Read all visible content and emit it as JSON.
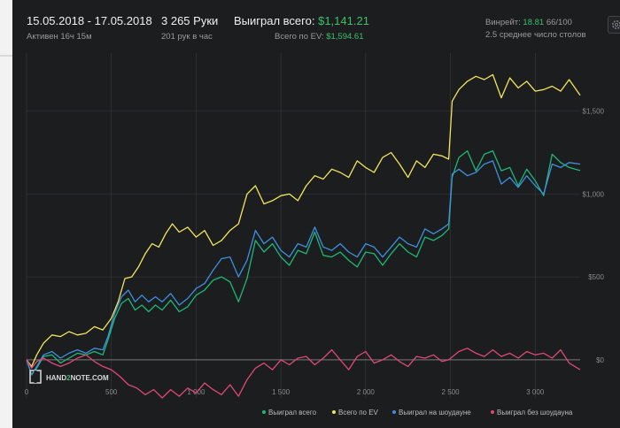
{
  "header": {
    "date_range": "15.05.2018 - 17.05.2018",
    "active": "Активен 16ч 15м",
    "hands": "3 265 Руки",
    "hands_per_hour": "201 рук в час",
    "won_label": "Выиграл всего:",
    "won_value": "$1,141.21",
    "ev_label": "Всего по EV:",
    "ev_value": "$1,594.61",
    "winrate_label": "Винрейт:",
    "winrate_value": "18.81",
    "winrate_extra": "66/100",
    "tables": "2.5 среднее число столов"
  },
  "logo": {
    "text_left": "HAND",
    "text_mid": "2",
    "text_right": "NOTE.COM"
  },
  "colors": {
    "background": "#1c1d1f",
    "grid": "#3a3b3e",
    "zero_line": "#7a7a7a",
    "won": "#1eb877",
    "ev": "#f2e55b",
    "showdown": "#3f8fde",
    "non_showdown": "#e04874",
    "accent_green": "#3cc06a"
  },
  "legend": [
    {
      "label": "Выиграл всего",
      "color": "#1eb877"
    },
    {
      "label": "Всего по EV",
      "color": "#f2e55b"
    },
    {
      "label": "Выиграл на шоудауне",
      "color": "#3f8fde"
    },
    {
      "label": "Выиграл без шоудауна",
      "color": "#e04874"
    }
  ],
  "chart_data": {
    "type": "line",
    "xlim": [
      0,
      3265
    ],
    "ylim": [
      -230,
      1850
    ],
    "x_ticks": [
      {
        "value": 0,
        "label": "0"
      },
      {
        "value": 500,
        "label": "500"
      },
      {
        "value": 1000,
        "label": "1 000"
      },
      {
        "value": 1500,
        "label": "1 500"
      },
      {
        "value": 2000,
        "label": "2 000"
      },
      {
        "value": 2500,
        "label": "2 500"
      },
      {
        "value": 3000,
        "label": "3 000"
      }
    ],
    "y_ticks": [
      {
        "value": 0,
        "label": "$0"
      },
      {
        "value": 500,
        "label": "$500"
      },
      {
        "value": 1000,
        "label": "$1,000"
      },
      {
        "value": 1500,
        "label": "$1,500"
      }
    ],
    "grid": true,
    "legend_position": "bottom-right",
    "series": [
      {
        "name": "Выиграл всего",
        "color": "#1eb877",
        "points": [
          [
            0,
            0
          ],
          [
            30,
            -90
          ],
          [
            60,
            -50
          ],
          [
            100,
            20
          ],
          [
            150,
            30
          ],
          [
            200,
            -20
          ],
          [
            250,
            10
          ],
          [
            300,
            40
          ],
          [
            350,
            30
          ],
          [
            400,
            50
          ],
          [
            450,
            30
          ],
          [
            480,
            120
          ],
          [
            520,
            250
          ],
          [
            560,
            340
          ],
          [
            600,
            370
          ],
          [
            640,
            300
          ],
          [
            680,
            330
          ],
          [
            720,
            290
          ],
          [
            760,
            330
          ],
          [
            800,
            300
          ],
          [
            850,
            360
          ],
          [
            900,
            290
          ],
          [
            950,
            320
          ],
          [
            1000,
            390
          ],
          [
            1050,
            420
          ],
          [
            1100,
            480
          ],
          [
            1150,
            500
          ],
          [
            1200,
            470
          ],
          [
            1250,
            350
          ],
          [
            1300,
            490
          ],
          [
            1350,
            720
          ],
          [
            1400,
            650
          ],
          [
            1450,
            700
          ],
          [
            1500,
            620
          ],
          [
            1550,
            570
          ],
          [
            1600,
            660
          ],
          [
            1650,
            640
          ],
          [
            1700,
            770
          ],
          [
            1750,
            630
          ],
          [
            1800,
            620
          ],
          [
            1850,
            650
          ],
          [
            1900,
            600
          ],
          [
            1950,
            560
          ],
          [
            2000,
            650
          ],
          [
            2050,
            640
          ],
          [
            2100,
            570
          ],
          [
            2150,
            640
          ],
          [
            2200,
            700
          ],
          [
            2250,
            650
          ],
          [
            2300,
            620
          ],
          [
            2350,
            740
          ],
          [
            2400,
            720
          ],
          [
            2450,
            750
          ],
          [
            2490,
            790
          ],
          [
            2510,
            1100
          ],
          [
            2550,
            1220
          ],
          [
            2600,
            1260
          ],
          [
            2650,
            1140
          ],
          [
            2700,
            1240
          ],
          [
            2750,
            1260
          ],
          [
            2800,
            1140
          ],
          [
            2850,
            1160
          ],
          [
            2900,
            1050
          ],
          [
            2950,
            1150
          ],
          [
            3000,
            1080
          ],
          [
            3050,
            990
          ],
          [
            3100,
            1240
          ],
          [
            3150,
            1190
          ],
          [
            3200,
            1160
          ],
          [
            3265,
            1141
          ]
        ]
      },
      {
        "name": "Всего по EV",
        "color": "#f2e55b",
        "points": [
          [
            0,
            0
          ],
          [
            30,
            -40
          ],
          [
            60,
            30
          ],
          [
            100,
            100
          ],
          [
            150,
            150
          ],
          [
            200,
            140
          ],
          [
            250,
            170
          ],
          [
            300,
            150
          ],
          [
            350,
            160
          ],
          [
            400,
            200
          ],
          [
            450,
            180
          ],
          [
            500,
            250
          ],
          [
            540,
            350
          ],
          [
            580,
            490
          ],
          [
            620,
            500
          ],
          [
            660,
            560
          ],
          [
            700,
            640
          ],
          [
            740,
            700
          ],
          [
            780,
            680
          ],
          [
            820,
            760
          ],
          [
            860,
            820
          ],
          [
            900,
            770
          ],
          [
            950,
            800
          ],
          [
            1000,
            740
          ],
          [
            1050,
            780
          ],
          [
            1100,
            690
          ],
          [
            1150,
            720
          ],
          [
            1200,
            780
          ],
          [
            1250,
            820
          ],
          [
            1300,
            1000
          ],
          [
            1350,
            1050
          ],
          [
            1400,
            940
          ],
          [
            1450,
            960
          ],
          [
            1500,
            990
          ],
          [
            1550,
            1000
          ],
          [
            1600,
            960
          ],
          [
            1650,
            1050
          ],
          [
            1700,
            1110
          ],
          [
            1750,
            1090
          ],
          [
            1800,
            1150
          ],
          [
            1850,
            1130
          ],
          [
            1900,
            1100
          ],
          [
            1950,
            1200
          ],
          [
            2000,
            1160
          ],
          [
            2050,
            1130
          ],
          [
            2100,
            1220
          ],
          [
            2150,
            1250
          ],
          [
            2200,
            1180
          ],
          [
            2250,
            1100
          ],
          [
            2300,
            1200
          ],
          [
            2350,
            1160
          ],
          [
            2400,
            1240
          ],
          [
            2450,
            1230
          ],
          [
            2490,
            1210
          ],
          [
            2510,
            1560
          ],
          [
            2550,
            1630
          ],
          [
            2600,
            1680
          ],
          [
            2650,
            1710
          ],
          [
            2700,
            1690
          ],
          [
            2750,
            1720
          ],
          [
            2800,
            1580
          ],
          [
            2850,
            1700
          ],
          [
            2900,
            1640
          ],
          [
            2950,
            1680
          ],
          [
            3000,
            1620
          ],
          [
            3050,
            1630
          ],
          [
            3100,
            1650
          ],
          [
            3150,
            1620
          ],
          [
            3200,
            1690
          ],
          [
            3265,
            1595
          ]
        ]
      },
      {
        "name": "Выиграл на шоудауне",
        "color": "#3f8fde",
        "points": [
          [
            0,
            0
          ],
          [
            30,
            -90
          ],
          [
            60,
            -40
          ],
          [
            100,
            30
          ],
          [
            150,
            50
          ],
          [
            200,
            10
          ],
          [
            250,
            40
          ],
          [
            300,
            60
          ],
          [
            350,
            40
          ],
          [
            400,
            70
          ],
          [
            450,
            60
          ],
          [
            480,
            140
          ],
          [
            520,
            280
          ],
          [
            560,
            380
          ],
          [
            600,
            420
          ],
          [
            640,
            350
          ],
          [
            680,
            390
          ],
          [
            720,
            350
          ],
          [
            760,
            380
          ],
          [
            800,
            350
          ],
          [
            850,
            400
          ],
          [
            900,
            330
          ],
          [
            950,
            370
          ],
          [
            1000,
            430
          ],
          [
            1050,
            460
          ],
          [
            1100,
            540
          ],
          [
            1150,
            610
          ],
          [
            1200,
            620
          ],
          [
            1250,
            500
          ],
          [
            1300,
            600
          ],
          [
            1350,
            780
          ],
          [
            1400,
            700
          ],
          [
            1450,
            740
          ],
          [
            1500,
            660
          ],
          [
            1550,
            620
          ],
          [
            1600,
            700
          ],
          [
            1650,
            680
          ],
          [
            1700,
            800
          ],
          [
            1750,
            680
          ],
          [
            1800,
            660
          ],
          [
            1850,
            700
          ],
          [
            1900,
            650
          ],
          [
            1950,
            620
          ],
          [
            2000,
            700
          ],
          [
            2050,
            680
          ],
          [
            2100,
            620
          ],
          [
            2150,
            680
          ],
          [
            2200,
            740
          ],
          [
            2250,
            700
          ],
          [
            2300,
            680
          ],
          [
            2350,
            790
          ],
          [
            2400,
            760
          ],
          [
            2450,
            790
          ],
          [
            2490,
            820
          ],
          [
            2510,
            1120
          ],
          [
            2550,
            1150
          ],
          [
            2600,
            1110
          ],
          [
            2650,
            1130
          ],
          [
            2700,
            1180
          ],
          [
            2750,
            1200
          ],
          [
            2800,
            1060
          ],
          [
            2850,
            1100
          ],
          [
            2900,
            1040
          ],
          [
            2950,
            1110
          ],
          [
            3000,
            1050
          ],
          [
            3050,
            1000
          ],
          [
            3100,
            1180
          ],
          [
            3150,
            1160
          ],
          [
            3200,
            1190
          ],
          [
            3265,
            1180
          ]
        ]
      },
      {
        "name": "Выиграл без шоудауна",
        "color": "#e04874",
        "points": [
          [
            0,
            0
          ],
          [
            30,
            -50
          ],
          [
            60,
            -10
          ],
          [
            100,
            10
          ],
          [
            150,
            -20
          ],
          [
            200,
            -40
          ],
          [
            250,
            -20
          ],
          [
            300,
            10
          ],
          [
            350,
            30
          ],
          [
            400,
            -10
          ],
          [
            450,
            -40
          ],
          [
            500,
            -60
          ],
          [
            550,
            -100
          ],
          [
            600,
            -150
          ],
          [
            650,
            -170
          ],
          [
            700,
            -210
          ],
          [
            750,
            -180
          ],
          [
            800,
            -230
          ],
          [
            850,
            -180
          ],
          [
            900,
            -220
          ],
          [
            950,
            -170
          ],
          [
            1000,
            -200
          ],
          [
            1050,
            -140
          ],
          [
            1100,
            -180
          ],
          [
            1150,
            -210
          ],
          [
            1200,
            -150
          ],
          [
            1250,
            -220
          ],
          [
            1300,
            -120
          ],
          [
            1350,
            -50
          ],
          [
            1400,
            -20
          ],
          [
            1450,
            -60
          ],
          [
            1500,
            0
          ],
          [
            1550,
            -30
          ],
          [
            1600,
            10
          ],
          [
            1650,
            20
          ],
          [
            1700,
            -30
          ],
          [
            1750,
            10
          ],
          [
            1800,
            60
          ],
          [
            1850,
            0
          ],
          [
            1900,
            -60
          ],
          [
            1950,
            20
          ],
          [
            2000,
            50
          ],
          [
            2050,
            -20
          ],
          [
            2100,
            0
          ],
          [
            2150,
            30
          ],
          [
            2200,
            -10
          ],
          [
            2250,
            -40
          ],
          [
            2300,
            20
          ],
          [
            2350,
            10
          ],
          [
            2400,
            30
          ],
          [
            2450,
            -10
          ],
          [
            2490,
            0
          ],
          [
            2550,
            50
          ],
          [
            2600,
            70
          ],
          [
            2650,
            40
          ],
          [
            2700,
            20
          ],
          [
            2750,
            60
          ],
          [
            2800,
            20
          ],
          [
            2850,
            40
          ],
          [
            2900,
            10
          ],
          [
            2950,
            50
          ],
          [
            3000,
            30
          ],
          [
            3050,
            40
          ],
          [
            3100,
            10
          ],
          [
            3150,
            60
          ],
          [
            3200,
            -20
          ],
          [
            3265,
            -60
          ]
        ]
      }
    ]
  }
}
